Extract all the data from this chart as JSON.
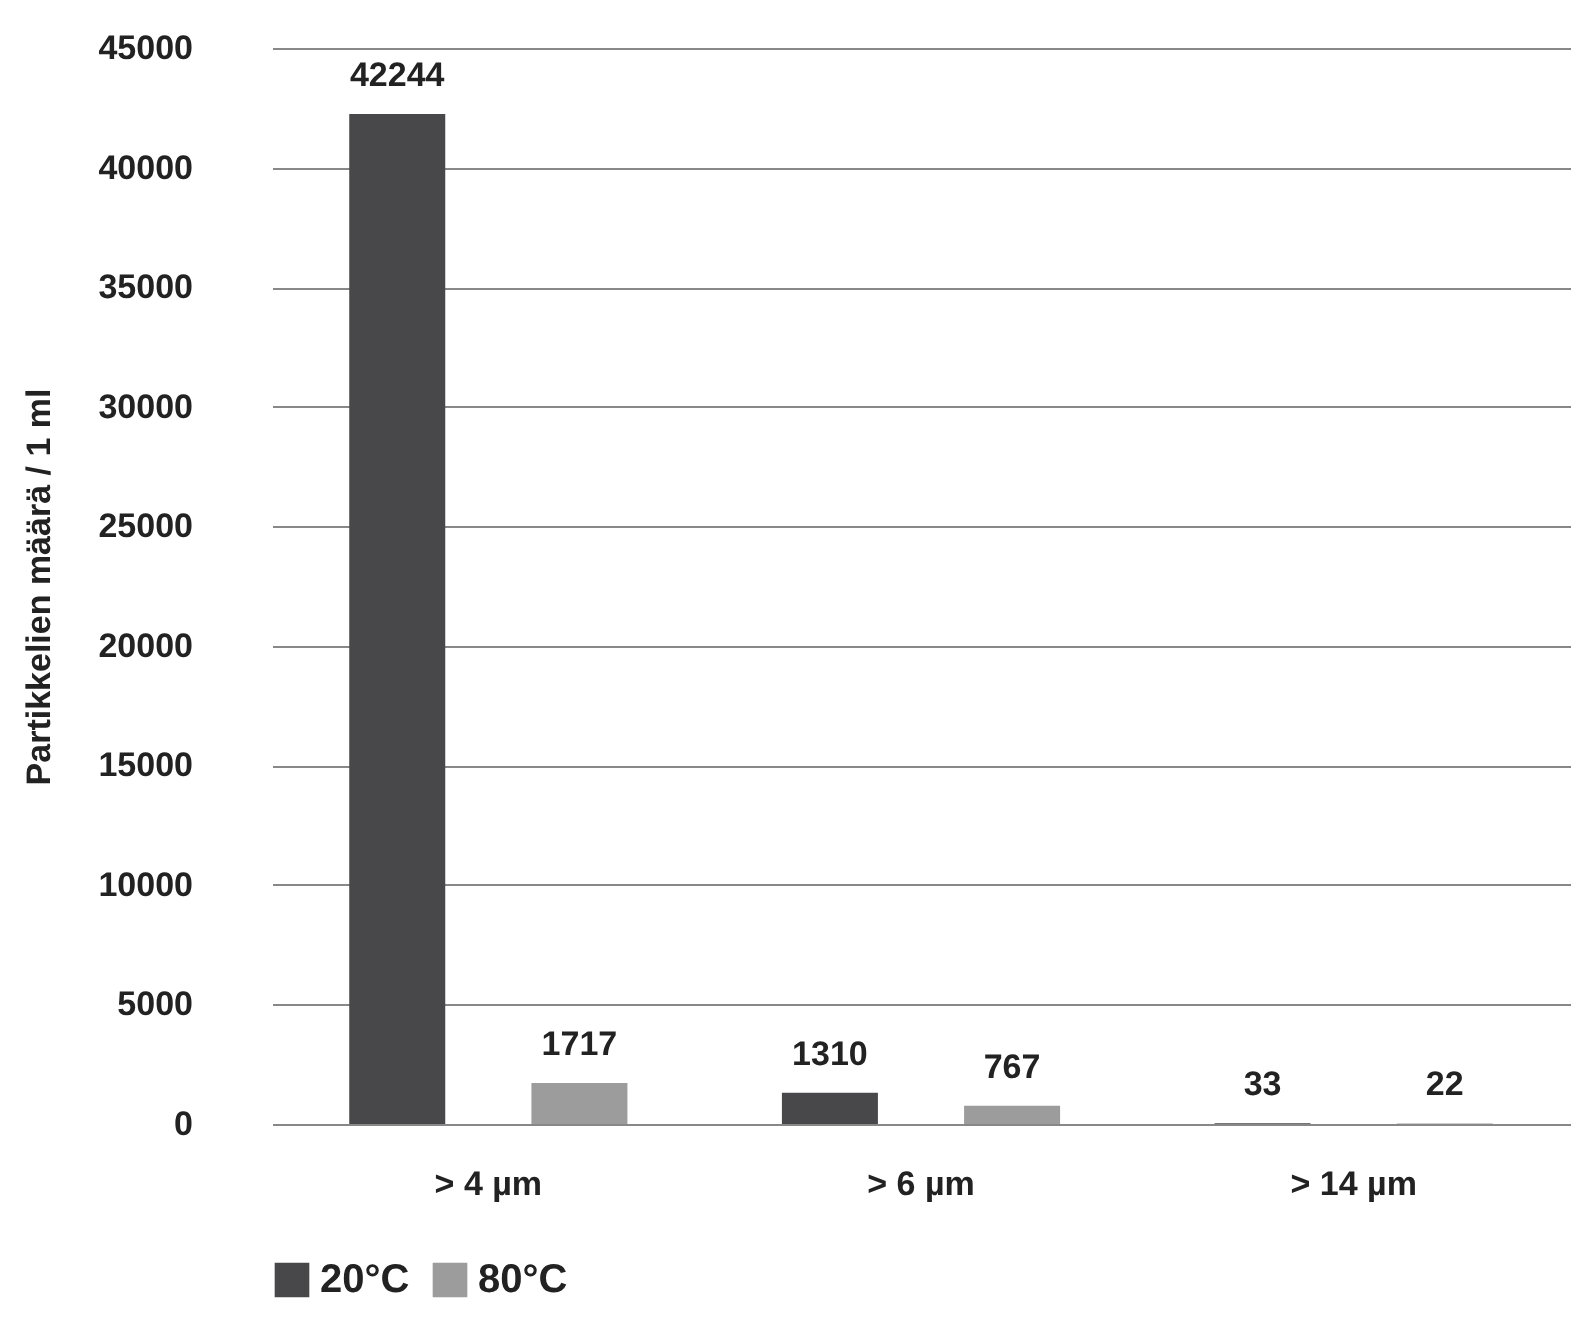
{
  "chart_data": {
    "type": "bar",
    "ylabel": "Partikkelien määrä / 1 ml",
    "categories": [
      "> 4 µm",
      "> 6 µm",
      "> 14 µm"
    ],
    "series": [
      {
        "name": "20°C",
        "color": "#48484a",
        "values": [
          42244,
          1310,
          33
        ]
      },
      {
        "name": "80°C",
        "color": "#9c9c9c",
        "values": [
          1717,
          767,
          22
        ]
      }
    ],
    "ylim": [
      0,
      45000
    ],
    "yticks": [
      0,
      5000,
      10000,
      15000,
      20000,
      25000,
      30000,
      35000,
      40000,
      45000
    ],
    "grid": "y",
    "legend": "bottom",
    "data_labels": true
  }
}
